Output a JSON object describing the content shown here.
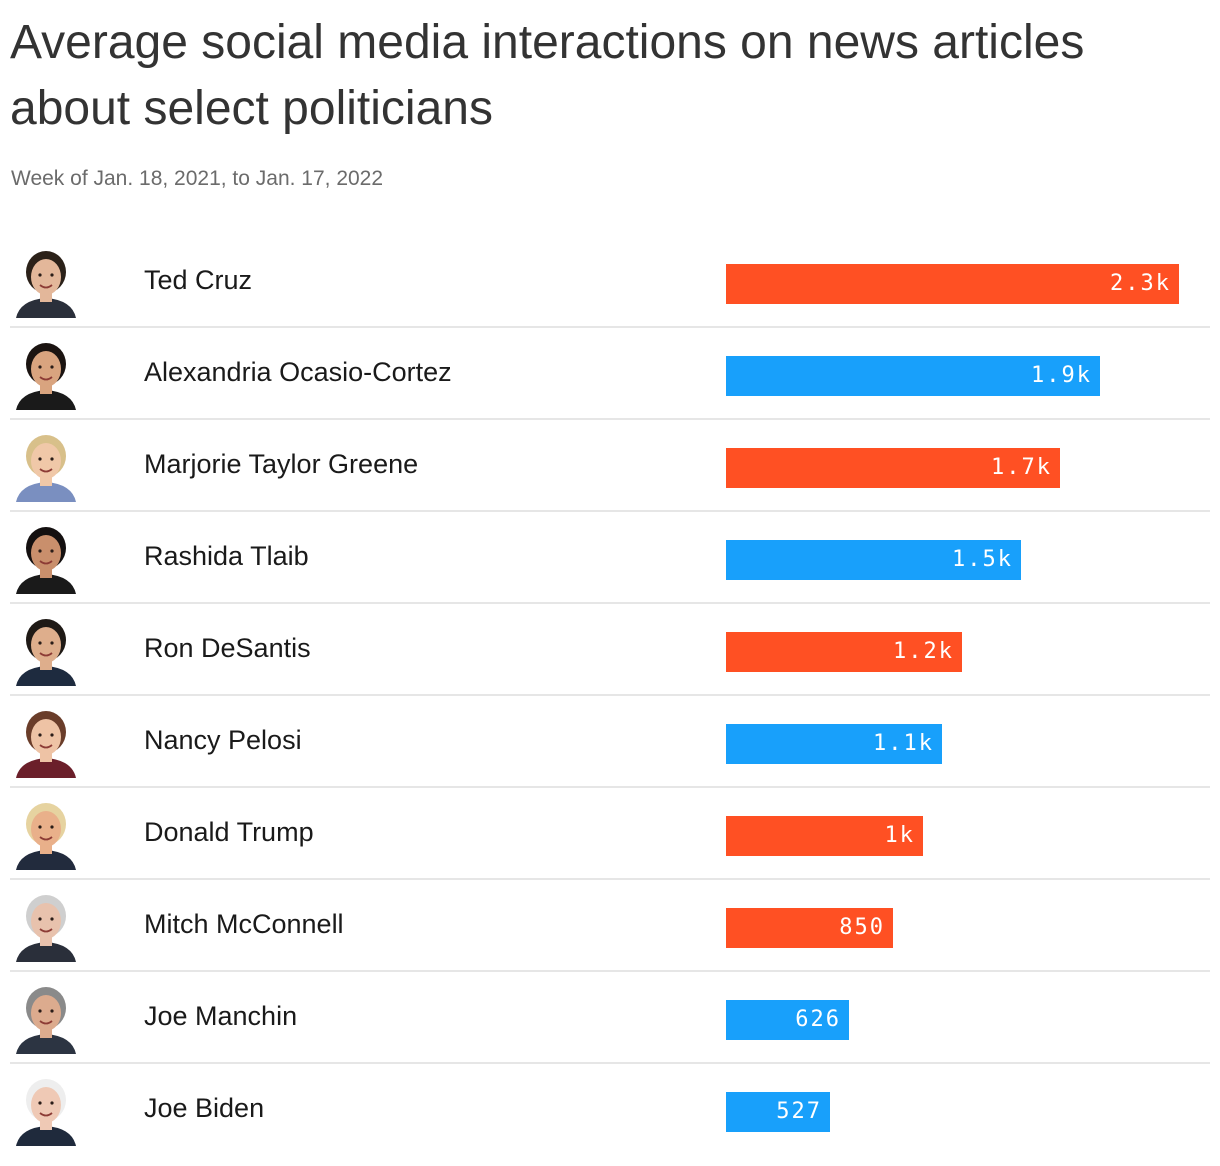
{
  "chart_data": {
    "type": "bar",
    "orientation": "horizontal",
    "title": "Average social media interactions on news articles about select politicians",
    "subtitle": "Week of Jan. 18, 2021, to Jan. 17, 2022",
    "categories": [
      "Ted Cruz",
      "Alexandria Ocasio-Cortez",
      "Marjorie Taylor Greene",
      "Rashida Tlaib",
      "Ron DeSantis",
      "Nancy Pelosi",
      "Donald Trump",
      "Mitch McConnell",
      "Joe Manchin",
      "Joe Biden"
    ],
    "values": [
      2300,
      1900,
      1700,
      1500,
      1200,
      1100,
      1000,
      850,
      626,
      527
    ],
    "value_labels": [
      "2.3k",
      "1.9k",
      "1.7k",
      "1.5k",
      "1.2k",
      "1.1k",
      "1k",
      "850",
      "626",
      "527"
    ],
    "party": [
      "republican",
      "democrat",
      "republican",
      "democrat",
      "republican",
      "democrat",
      "republican",
      "republican",
      "democrat",
      "democrat"
    ],
    "colors": {
      "republican": "#ff5023",
      "democrat": "#18a0fb"
    },
    "xlim": [
      0,
      2460
    ],
    "xlabel": "",
    "ylabel": "",
    "grid": false,
    "legend": "none"
  },
  "icons": [
    "ted-cruz-portrait-icon",
    "alexandria-ocasio-cortez-portrait-icon",
    "marjorie-taylor-greene-portrait-icon",
    "rashida-tlaib-portrait-icon",
    "ron-desantis-portrait-icon",
    "nancy-pelosi-portrait-icon",
    "donald-trump-portrait-icon",
    "mitch-mcconnell-portrait-icon",
    "joe-manchin-portrait-icon",
    "joe-biden-portrait-icon"
  ]
}
